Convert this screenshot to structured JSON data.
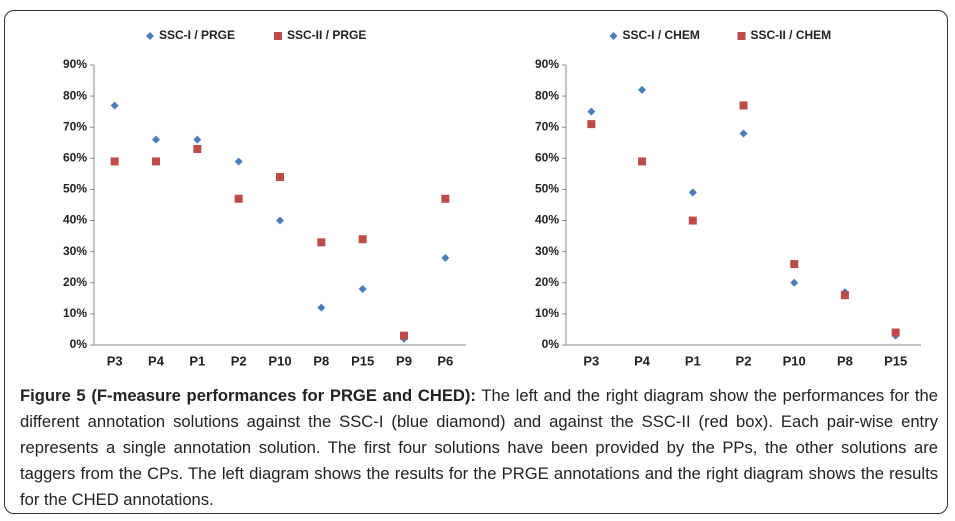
{
  "chart_data": [
    {
      "type": "scatter",
      "categories": [
        "P3",
        "P4",
        "P1",
        "P2",
        "P10",
        "P8",
        "P15",
        "P9",
        "P6"
      ],
      "series": [
        {
          "name": "SSC-I / PRGE",
          "color": "#4a7ebb",
          "marker": "diamond",
          "values": [
            77,
            66,
            66,
            59,
            40,
            12,
            18,
            2,
            28
          ]
        },
        {
          "name": "SSC-II / PRGE",
          "color": "#be4b48",
          "marker": "square",
          "values": [
            59,
            59,
            63,
            47,
            54,
            33,
            34,
            3,
            47
          ]
        }
      ],
      "ylim": [
        0,
        90
      ],
      "yticks": [
        {
          "value": 0,
          "label": "0%"
        },
        {
          "value": 10,
          "label": "10%"
        },
        {
          "value": 20,
          "label": "20%"
        },
        {
          "value": 30,
          "label": "30%"
        },
        {
          "value": 40,
          "label": "40%"
        },
        {
          "value": 50,
          "label": "50%"
        },
        {
          "value": 60,
          "label": "60%"
        },
        {
          "value": 70,
          "label": "70%"
        },
        {
          "value": 80,
          "label": "80%"
        },
        {
          "value": 90,
          "label": "90%"
        }
      ],
      "legend": "top"
    },
    {
      "type": "scatter",
      "categories": [
        "P3",
        "P4",
        "P1",
        "P2",
        "P10",
        "P8",
        "P15"
      ],
      "series": [
        {
          "name": "SSC-I / CHEM",
          "color": "#4a7ebb",
          "marker": "diamond",
          "values": [
            75,
            82,
            49,
            68,
            20,
            17,
            3
          ]
        },
        {
          "name": "SSC-II / CHEM",
          "color": "#be4b48",
          "marker": "square",
          "values": [
            71,
            59,
            40,
            77,
            26,
            16,
            4
          ]
        }
      ],
      "ylim": [
        0,
        90
      ],
      "yticks": [
        {
          "value": 0,
          "label": "0%"
        },
        {
          "value": 10,
          "label": "10%"
        },
        {
          "value": 20,
          "label": "20%"
        },
        {
          "value": 30,
          "label": "30%"
        },
        {
          "value": 40,
          "label": "40%"
        },
        {
          "value": 50,
          "label": "50%"
        },
        {
          "value": 60,
          "label": "60%"
        },
        {
          "value": 70,
          "label": "70%"
        },
        {
          "value": 80,
          "label": "80%"
        },
        {
          "value": 90,
          "label": "90%"
        }
      ],
      "legend": "top"
    }
  ],
  "caption": {
    "label": "Figure 5 (F-measure performances for PRGE and CHED):",
    "text": "The left and the right diagram show the performances for the different annotation solutions against the SSC-I (blue diamond) and against the SSC-II (red box). Each pair-wise entry represents a single annotation solution. The first four solutions have been provided by the PPs, the other solutions are taggers from the CPs. The left diagram shows the results for the PRGE annotations and the right diagram shows the results for the CHED annotations."
  }
}
